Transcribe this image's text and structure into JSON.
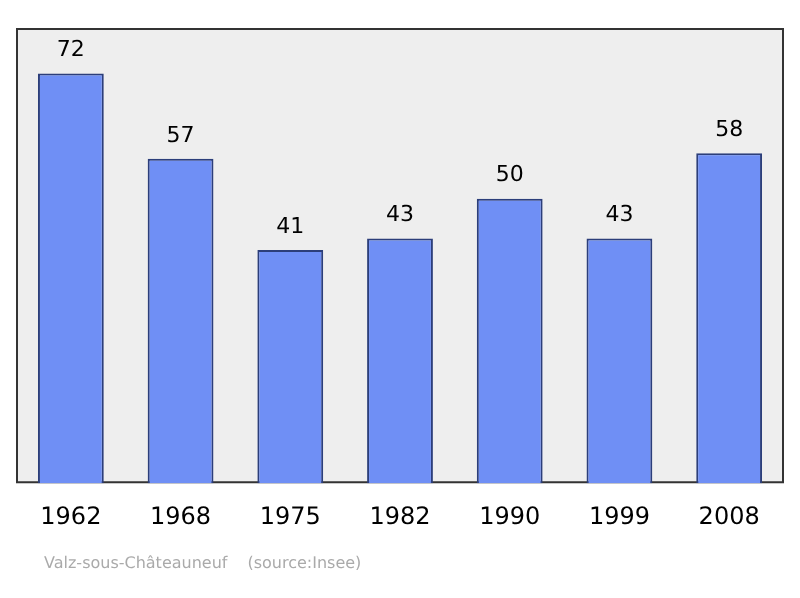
{
  "chart_data": {
    "type": "bar",
    "categories": [
      "1962",
      "1968",
      "1975",
      "1982",
      "1990",
      "1999",
      "2008"
    ],
    "values": [
      72,
      57,
      41,
      43,
      50,
      43,
      58
    ],
    "color": "#6f8ff5",
    "data_labels": true,
    "grid": false,
    "legend": false,
    "tick_labels": "x",
    "annotations": [
      "Valz-sous-Châteauneuf",
      "(source:Insee)"
    ]
  }
}
